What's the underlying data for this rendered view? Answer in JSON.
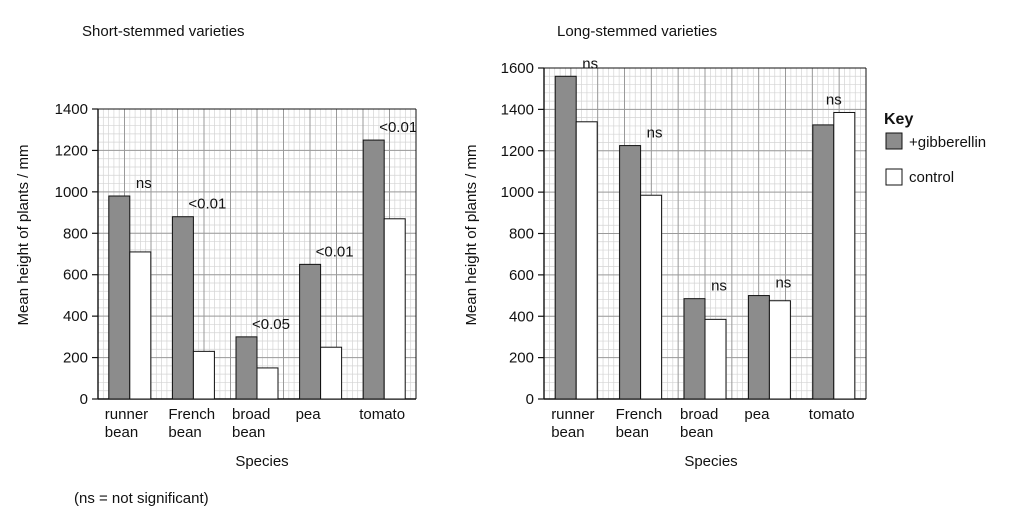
{
  "footnote": "(ns = not significant)",
  "key": {
    "title": "Key",
    "items": [
      {
        "label": "+gibberellin",
        "color": "#8c8c8c"
      },
      {
        "label": "control",
        "color": "#ffffff"
      }
    ]
  },
  "chart_data": [
    {
      "type": "bar",
      "title": "Short-stemmed varieties",
      "xlabel": "Species",
      "ylabel": "Mean height of plants / mm",
      "ylim": [
        0,
        1400
      ],
      "yticks": [
        0,
        200,
        400,
        600,
        800,
        1000,
        1200,
        1400
      ],
      "grid": true,
      "categories": [
        [
          "runner",
          "bean"
        ],
        [
          "French",
          "bean"
        ],
        [
          "broad",
          "bean"
        ],
        [
          "pea"
        ],
        [
          "tomato"
        ]
      ],
      "series": [
        {
          "name": "+gibberellin",
          "color": "#8c8c8c",
          "values": [
            980,
            880,
            300,
            650,
            1250
          ]
        },
        {
          "name": "control",
          "color": "#ffffff",
          "values": [
            710,
            230,
            150,
            250,
            870
          ]
        }
      ],
      "significance": [
        "ns",
        "<0.01",
        "<0.05",
        "<0.01",
        "<0.01"
      ]
    },
    {
      "type": "bar",
      "title": "Long-stemmed varieties",
      "xlabel": "Species",
      "ylabel": "Mean height of plants / mm",
      "ylim": [
        0,
        1600
      ],
      "yticks": [
        0,
        200,
        400,
        600,
        800,
        1000,
        1200,
        1400,
        1600
      ],
      "grid": true,
      "legend": "right",
      "categories": [
        [
          "runner",
          "bean"
        ],
        [
          "French",
          "bean"
        ],
        [
          "broad",
          "bean"
        ],
        [
          "pea"
        ],
        [
          "tomato"
        ]
      ],
      "series": [
        {
          "name": "+gibberellin",
          "color": "#8c8c8c",
          "values": [
            1560,
            1225,
            485,
            500,
            1325
          ]
        },
        {
          "name": "control",
          "color": "#ffffff",
          "values": [
            1340,
            985,
            385,
            475,
            1385
          ]
        }
      ],
      "significance": [
        "ns",
        "ns",
        "ns",
        "ns",
        "ns"
      ]
    }
  ]
}
